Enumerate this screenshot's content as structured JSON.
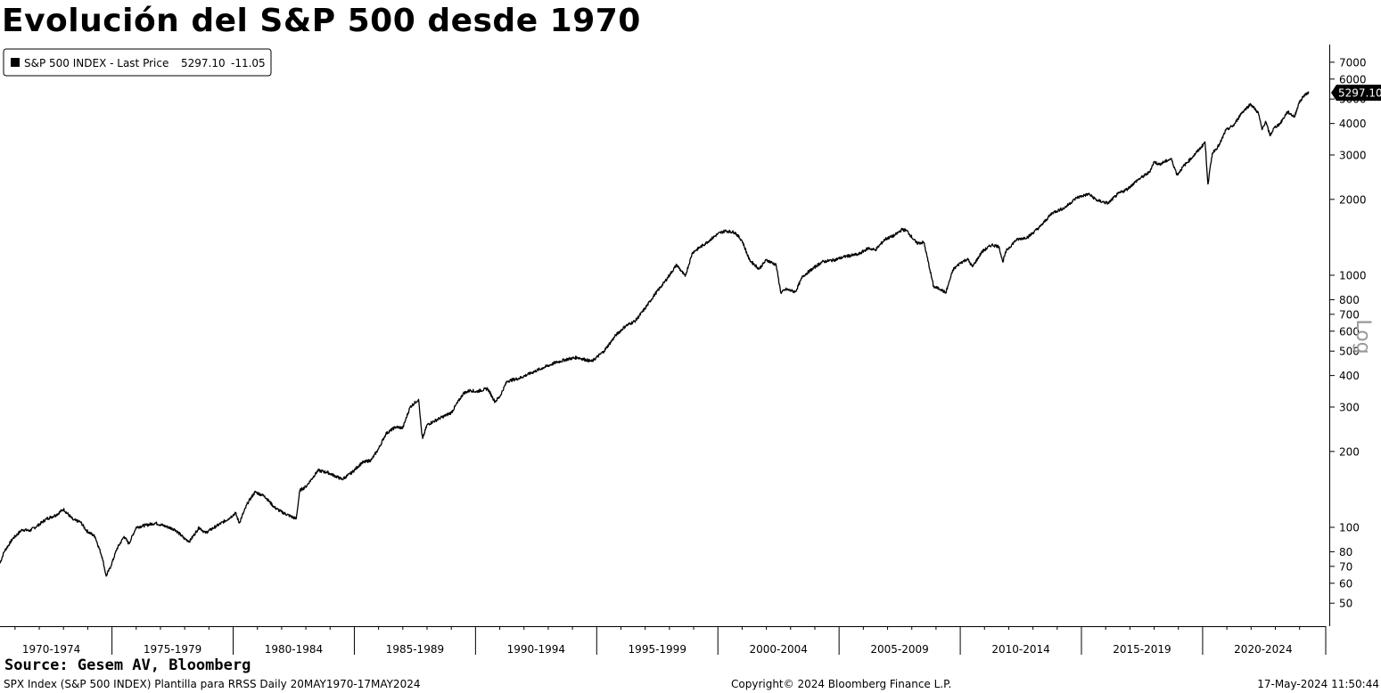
{
  "title": "Evolución del S&P 500 desde 1970",
  "legend": {
    "series": "S&P 500 INDEX - Last Price",
    "last": "5297.10",
    "change": "-11.05"
  },
  "footer": {
    "source": "Source: Gesem AV, Bloomberg",
    "left": "SPX Index (S&P 500 INDEX) Plantilla para RRSS  Daily 20MAY1970-17MAY2024",
    "center": "Copyright© 2024 Bloomberg Finance L.P.",
    "right": "17-May-2024 11:50:44"
  },
  "colors": {
    "line": "#000000",
    "background": "#ffffff",
    "price_tag": "#000000",
    "axis_label": "#999999"
  },
  "chart_data": {
    "type": "line",
    "yscale": "log",
    "ylabel": "Log",
    "ylim": [
      45,
      7600
    ],
    "xlim": [
      1970.38,
      2025.2
    ],
    "yticks": [
      50,
      60,
      70,
      80,
      100,
      200,
      300,
      400,
      500,
      600,
      700,
      800,
      1000,
      2000,
      3000,
      4000,
      5000,
      6000,
      7000
    ],
    "ytick_labels": [
      "50",
      "60",
      "70",
      "80",
      "100",
      "200",
      "300",
      "400",
      "500",
      "600",
      "700",
      "800",
      "1000",
      "2000",
      "3000",
      "4000",
      "5000",
      "6000",
      "7000"
    ],
    "x_categories": [
      "1970-1974",
      "1975-1979",
      "1980-1984",
      "1985-1989",
      "1990-1994",
      "1995-1999",
      "2000-2004",
      "2005-2009",
      "2010-2014",
      "2015-2019",
      "2020-2024"
    ],
    "last_price_label": "5297.10",
    "series": [
      {
        "name": "S&P 500 INDEX - Last Price",
        "x": [
          1970.38,
          1970.55,
          1970.9,
          1971.3,
          1971.6,
          1971.9,
          1972.3,
          1972.7,
          1973.0,
          1973.4,
          1973.7,
          1973.95,
          1974.3,
          1974.6,
          1974.76,
          1974.95,
          1975.2,
          1975.5,
          1975.7,
          1976.0,
          1976.4,
          1976.8,
          1977.2,
          1977.6,
          1978.0,
          1978.2,
          1978.6,
          1978.85,
          1979.3,
          1979.8,
          1980.1,
          1980.25,
          1980.6,
          1980.9,
          1981.3,
          1981.7,
          1982.0,
          1982.6,
          1982.75,
          1983.0,
          1983.5,
          1983.9,
          1984.5,
          1984.9,
          1985.3,
          1985.7,
          1986.0,
          1986.3,
          1986.7,
          1987.0,
          1987.3,
          1987.65,
          1987.78,
          1987.82,
          1988.0,
          1988.5,
          1989.0,
          1989.5,
          1989.8,
          1990.0,
          1990.5,
          1990.8,
          1991.0,
          1991.3,
          1991.8,
          1992.3,
          1992.8,
          1993.3,
          1993.8,
          1994.2,
          1994.8,
          1995.3,
          1995.8,
          1996.2,
          1996.6,
          1997.0,
          1997.4,
          1997.8,
          1998.3,
          1998.65,
          1998.95,
          1999.5,
          2000.0,
          2000.3,
          2000.7,
          2001.0,
          2001.3,
          2001.7,
          2002.0,
          2002.4,
          2002.6,
          2002.8,
          2003.2,
          2003.5,
          2003.9,
          2004.3,
          2004.8,
          2005.3,
          2005.8,
          2006.2,
          2006.5,
          2006.9,
          2007.3,
          2007.6,
          2007.8,
          2008.2,
          2008.5,
          2008.75,
          2008.9,
          2009.2,
          2009.4,
          2009.7,
          2010.0,
          2010.3,
          2010.5,
          2010.9,
          2011.3,
          2011.6,
          2011.75,
          2011.9,
          2012.3,
          2012.8,
          2013.3,
          2013.8,
          2014.3,
          2014.8,
          2015.3,
          2015.65,
          2016.1,
          2016.5,
          2016.9,
          2017.3,
          2017.8,
          2018.0,
          2018.2,
          2018.7,
          2018.95,
          2019.2,
          2019.6,
          2019.95,
          2020.1,
          2020.22,
          2020.4,
          2020.7,
          2020.95,
          2021.3,
          2021.6,
          2021.98,
          2022.3,
          2022.45,
          2022.6,
          2022.78,
          2022.95,
          2023.2,
          2023.5,
          2023.8,
          2023.95,
          2024.2,
          2024.38
        ],
        "values": [
          72,
          80,
          90,
          98,
          97,
          101,
          108,
          112,
          118,
          107,
          105,
          97,
          92,
          76,
          64,
          70,
          82,
          92,
          86,
          100,
          102,
          104,
          101,
          98,
          90,
          88,
          100,
          95,
          101,
          108,
          114,
          104,
          125,
          138,
          133,
          120,
          115,
          108,
          140,
          145,
          168,
          165,
          155,
          165,
          180,
          185,
          205,
          235,
          250,
          248,
          300,
          322,
          236,
          225,
          255,
          270,
          285,
          340,
          350,
          345,
          355,
          315,
          330,
          380,
          390,
          410,
          430,
          450,
          465,
          472,
          455,
          500,
          580,
          630,
          660,
          740,
          840,
          940,
          1100,
          990,
          1230,
          1340,
          1460,
          1500,
          1480,
          1370,
          1150,
          1060,
          1150,
          1100,
          850,
          880,
          860,
          990,
          1060,
          1130,
          1150,
          1190,
          1210,
          1280,
          1260,
          1390,
          1440,
          1520,
          1500,
          1340,
          1350,
          1050,
          900,
          880,
          850,
          1050,
          1120,
          1160,
          1080,
          1240,
          1320,
          1300,
          1130,
          1250,
          1380,
          1420,
          1560,
          1770,
          1850,
          2030,
          2100,
          1980,
          1930,
          2100,
          2200,
          2380,
          2560,
          2820,
          2750,
          2900,
          2500,
          2700,
          2960,
          3230,
          3380,
          2300,
          3050,
          3300,
          3750,
          3950,
          4400,
          4780,
          4400,
          3780,
          4080,
          3580,
          3840,
          4000,
          4450,
          4250,
          4770,
          5200,
          5297.1
        ]
      }
    ]
  }
}
